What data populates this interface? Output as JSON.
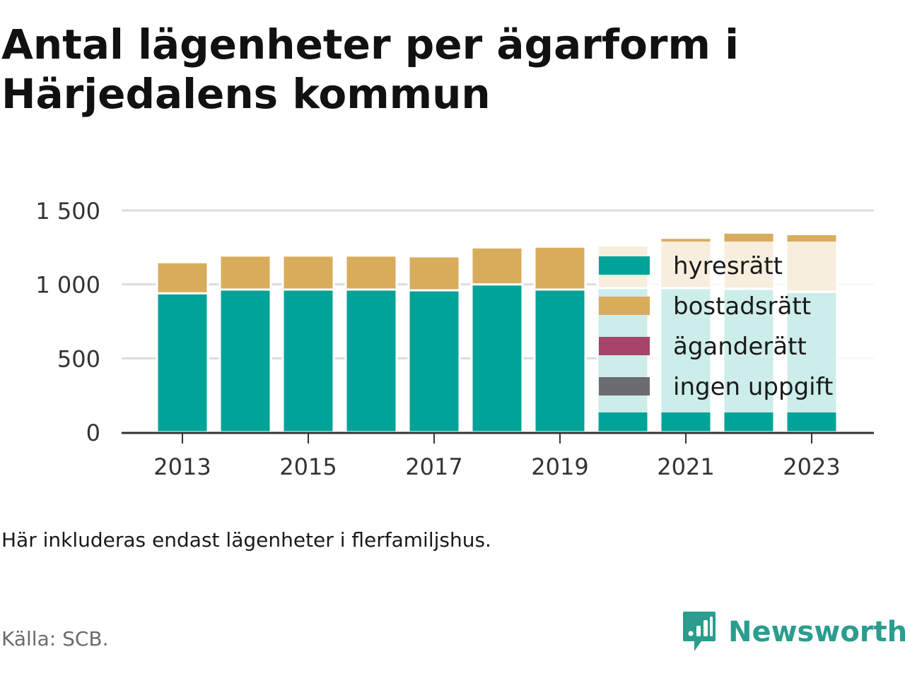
{
  "title": "Antal lägenheter per ägarform i Härjedalens kommun",
  "note": "Här inkluderas endast lägenheter i flerfamiljshus.",
  "source": "Källa: SCB.",
  "brand": {
    "name": "Newsworthy",
    "icon": "bar-chart-speech-bubble-icon",
    "color": "#2a9d8f"
  },
  "chart_data": {
    "type": "bar",
    "stacked": true,
    "categories": [
      "2013",
      "2014",
      "2015",
      "2016",
      "2017",
      "2018",
      "2019",
      "2020",
      "2021",
      "2022",
      "2023"
    ],
    "x_tick_labels": [
      "2013",
      "2015",
      "2017",
      "2019",
      "2021",
      "2023"
    ],
    "y_tick_labels": [
      "0",
      "500",
      "1 000",
      "1 500"
    ],
    "y_ticks": [
      0,
      500,
      1000,
      1500
    ],
    "ylim": [
      0,
      1500
    ],
    "grid": true,
    "legend_position": "right-inside",
    "series": [
      {
        "name": "hyresrätt",
        "color": "#00a398",
        "values": [
          940,
          965,
          965,
          965,
          960,
          1000,
          965,
          975,
          975,
          970,
          950
        ]
      },
      {
        "name": "bostadsrätt",
        "color": "#d9ac5c",
        "values": [
          210,
          230,
          230,
          230,
          230,
          250,
          290,
          290,
          340,
          380,
          390
        ]
      },
      {
        "name": "äganderätt",
        "color": "#a8436b",
        "values": [
          0,
          0,
          0,
          0,
          0,
          0,
          0,
          0,
          0,
          0,
          0
        ]
      },
      {
        "name": "ingen uppgift",
        "color": "#6b6b70",
        "values": [
          0,
          0,
          0,
          0,
          0,
          0,
          0,
          0,
          0,
          0,
          0
        ]
      }
    ]
  }
}
